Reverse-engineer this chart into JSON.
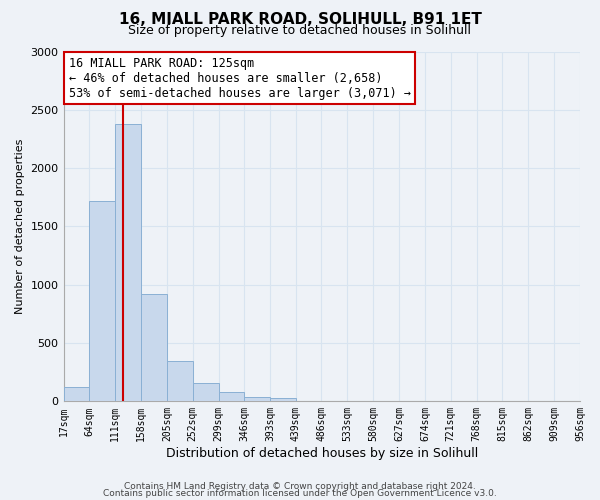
{
  "title": "16, MIALL PARK ROAD, SOLIHULL, B91 1ET",
  "subtitle": "Size of property relative to detached houses in Solihull",
  "xlabel": "Distribution of detached houses by size in Solihull",
  "ylabel": "Number of detached properties",
  "bar_edges": [
    17,
    64,
    111,
    158,
    205,
    252,
    299,
    346,
    393,
    439,
    486,
    533,
    580,
    627,
    674,
    721,
    768,
    815,
    862,
    909,
    956
  ],
  "bar_heights": [
    120,
    1720,
    2380,
    920,
    345,
    160,
    80,
    40,
    25,
    0,
    0,
    0,
    0,
    0,
    0,
    0,
    0,
    0,
    0,
    0
  ],
  "bar_color": "#c8d8ec",
  "bar_edge_color": "#8ab0d4",
  "vline_x": 125,
  "vline_color": "#cc0000",
  "annotation_line1": "16 MIALL PARK ROAD: 125sqm",
  "annotation_line2": "← 46% of detached houses are smaller (2,658)",
  "annotation_line3": "53% of semi-detached houses are larger (3,071) →",
  "annotation_box_facecolor": "#ffffff",
  "annotation_box_edgecolor": "#cc0000",
  "ylim": [
    0,
    3000
  ],
  "yticks": [
    0,
    500,
    1000,
    1500,
    2000,
    2500,
    3000
  ],
  "xtick_labels": [
    "17sqm",
    "64sqm",
    "111sqm",
    "158sqm",
    "205sqm",
    "252sqm",
    "299sqm",
    "346sqm",
    "393sqm",
    "439sqm",
    "486sqm",
    "533sqm",
    "580sqm",
    "627sqm",
    "674sqm",
    "721sqm",
    "768sqm",
    "815sqm",
    "862sqm",
    "909sqm",
    "956sqm"
  ],
  "footer1": "Contains HM Land Registry data © Crown copyright and database right 2024.",
  "footer2": "Contains public sector information licensed under the Open Government Licence v3.0.",
  "bg_color": "#eef2f7",
  "grid_color": "#d8e4f0",
  "spine_color": "#aaaaaa"
}
